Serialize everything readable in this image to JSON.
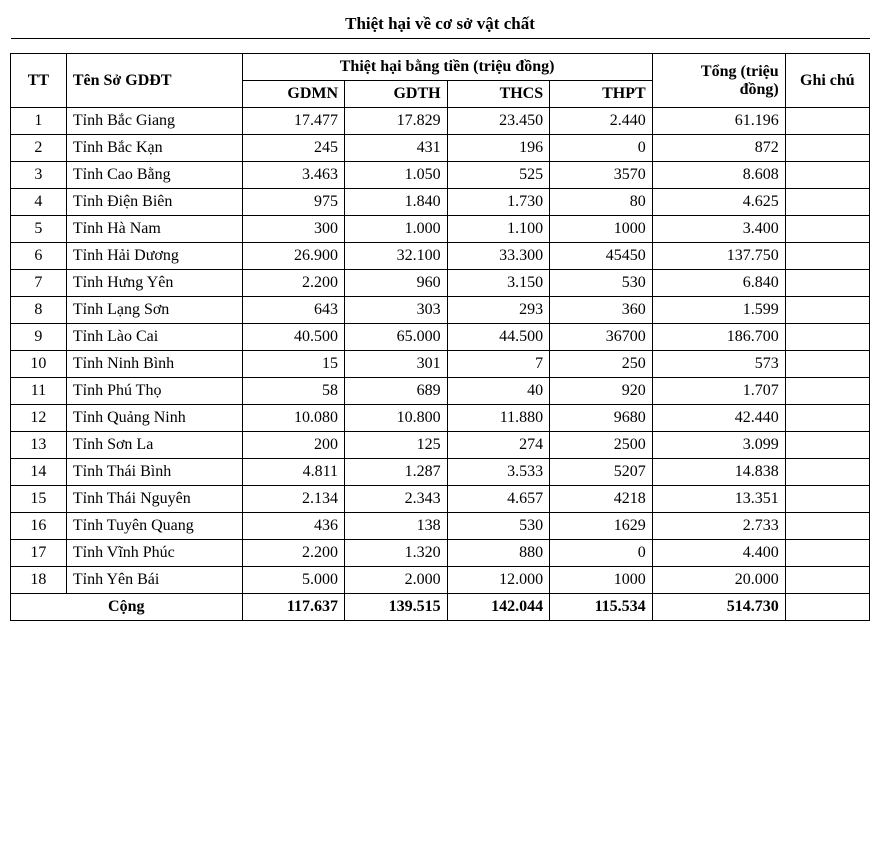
{
  "title": "Thiệt hại về cơ sở vật chất",
  "headers": {
    "tt": "TT",
    "name": "Tên Sở GDĐT",
    "money_group": "Thiệt hại bằng tiền (triệu đồng)",
    "gdmn": "GDMN",
    "gdth": "GDTH",
    "thcs": "THCS",
    "thpt": "THPT",
    "total": "Tổng (triệu đồng)",
    "note": "Ghi chú"
  },
  "rows": [
    {
      "tt": "1",
      "name": "Tỉnh Bắc Giang",
      "gdmn": "17.477",
      "gdth": "17.829",
      "thcs": "23.450",
      "thpt": "2.440",
      "total": "61.196",
      "note": ""
    },
    {
      "tt": "2",
      "name": "Tỉnh Bắc Kạn",
      "gdmn": "245",
      "gdth": "431",
      "thcs": "196",
      "thpt": "0",
      "total": "872",
      "note": ""
    },
    {
      "tt": "3",
      "name": "Tỉnh Cao Bằng",
      "gdmn": "3.463",
      "gdth": "1.050",
      "thcs": "525",
      "thpt": "3570",
      "total": "8.608",
      "note": ""
    },
    {
      "tt": "4",
      "name": "Tỉnh Điện Biên",
      "gdmn": "975",
      "gdth": "1.840",
      "thcs": "1.730",
      "thpt": "80",
      "total": "4.625",
      "note": ""
    },
    {
      "tt": "5",
      "name": "Tỉnh Hà Nam",
      "gdmn": "300",
      "gdth": "1.000",
      "thcs": "1.100",
      "thpt": "1000",
      "total": "3.400",
      "note": ""
    },
    {
      "tt": "6",
      "name": "Tỉnh Hải Dương",
      "gdmn": "26.900",
      "gdth": "32.100",
      "thcs": "33.300",
      "thpt": "45450",
      "total": "137.750",
      "note": ""
    },
    {
      "tt": "7",
      "name": "Tỉnh Hưng Yên",
      "gdmn": "2.200",
      "gdth": "960",
      "thcs": "3.150",
      "thpt": "530",
      "total": "6.840",
      "note": ""
    },
    {
      "tt": "8",
      "name": "Tỉnh Lạng Sơn",
      "gdmn": "643",
      "gdth": "303",
      "thcs": "293",
      "thpt": "360",
      "total": "1.599",
      "note": ""
    },
    {
      "tt": "9",
      "name": "Tỉnh Lào Cai",
      "gdmn": "40.500",
      "gdth": "65.000",
      "thcs": "44.500",
      "thpt": "36700",
      "total": "186.700",
      "note": ""
    },
    {
      "tt": "10",
      "name": "Tỉnh Ninh Bình",
      "gdmn": "15",
      "gdth": "301",
      "thcs": "7",
      "thpt": "250",
      "total": "573",
      "note": ""
    },
    {
      "tt": "11",
      "name": "Tỉnh Phú Thọ",
      "gdmn": "58",
      "gdth": "689",
      "thcs": "40",
      "thpt": "920",
      "total": "1.707",
      "note": ""
    },
    {
      "tt": "12",
      "name": "Tỉnh Quảng Ninh",
      "gdmn": "10.080",
      "gdth": "10.800",
      "thcs": "11.880",
      "thpt": "9680",
      "total": "42.440",
      "note": ""
    },
    {
      "tt": "13",
      "name": "Tỉnh Sơn La",
      "gdmn": "200",
      "gdth": "125",
      "thcs": "274",
      "thpt": "2500",
      "total": "3.099",
      "note": ""
    },
    {
      "tt": "14",
      "name": "Tỉnh Thái Bình",
      "gdmn": "4.811",
      "gdth": "1.287",
      "thcs": "3.533",
      "thpt": "5207",
      "total": "14.838",
      "note": ""
    },
    {
      "tt": "15",
      "name": "Tỉnh Thái Nguyên",
      "gdmn": "2.134",
      "gdth": "2.343",
      "thcs": "4.657",
      "thpt": "4218",
      "total": "13.351",
      "note": ""
    },
    {
      "tt": "16",
      "name": "Tỉnh Tuyên Quang",
      "gdmn": "436",
      "gdth": "138",
      "thcs": "530",
      "thpt": "1629",
      "total": "2.733",
      "note": ""
    },
    {
      "tt": "17",
      "name": "Tỉnh Vĩnh Phúc",
      "gdmn": "2.200",
      "gdth": "1.320",
      "thcs": "880",
      "thpt": "0",
      "total": "4.400",
      "note": ""
    },
    {
      "tt": "18",
      "name": "Tỉnh Yên Bái",
      "gdmn": "5.000",
      "gdth": "2.000",
      "thcs": "12.000",
      "thpt": "1000",
      "total": "20.000",
      "note": ""
    }
  ],
  "footer": {
    "label": "Cộng",
    "gdmn": "117.637",
    "gdth": "139.515",
    "thcs": "142.044",
    "thpt": "115.534",
    "total": "514.730",
    "note": ""
  }
}
